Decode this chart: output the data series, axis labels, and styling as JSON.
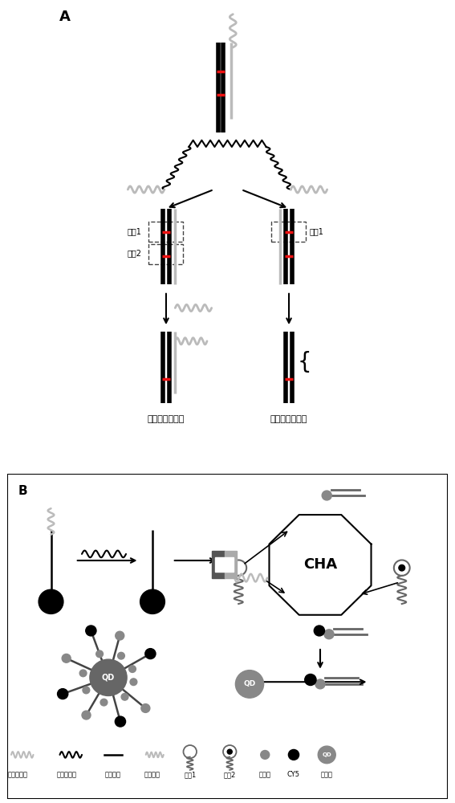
{
  "panel_A_label": "A",
  "panel_B_label": "B",
  "text_inhibit": "链置换反应抑制",
  "text_occur": "链置换反应发生",
  "text_mismatch1": "错配1",
  "text_mismatch2": "错配2",
  "text_CHA": "CHA",
  "legend_labels": [
    "野生目标物",
    "突变目标物",
    "捕获探针",
    "辅助探针",
    "发夹1",
    "发夹2",
    "生物素",
    "CY5",
    "量子点"
  ],
  "bg_color": "#ffffff",
  "black_color": "#000000",
  "gray_color": "#888888",
  "red_color": "#ee1111",
  "mid_gray": "#666666",
  "dark_gray": "#444444",
  "light_gray": "#bbbbbb"
}
